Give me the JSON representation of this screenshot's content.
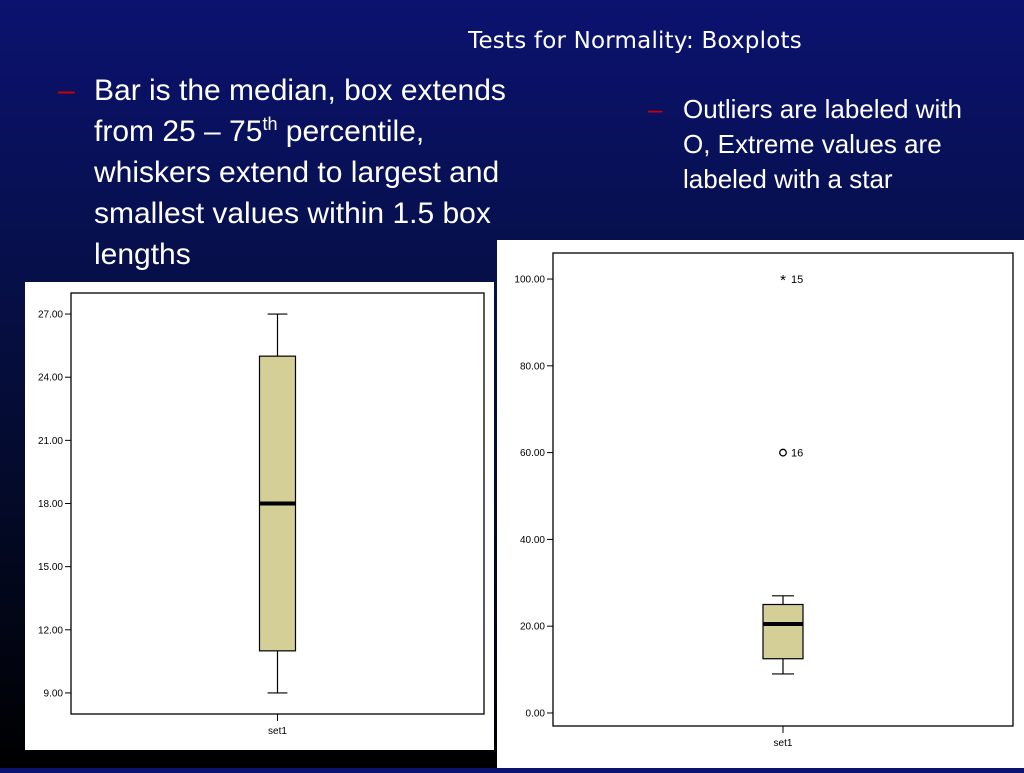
{
  "slide": {
    "title": "Tests for Normality: Boxplots",
    "bullet_left": {
      "dash": "–",
      "line1": "Bar is the median, box extends",
      "line2_prefix": "from 25 – 75",
      "line2_sup": "th",
      "line2_suffix": " percentile,",
      "line3": "whiskers extend to largest and",
      "line4": "smallest values within 1.5 box",
      "line5": "lengths"
    },
    "bullet_right": {
      "dash": "–",
      "line1": "Outliers are labeled with",
      "line2": "O, Extreme values are",
      "line3": "labeled with a star"
    }
  },
  "colors": {
    "box_fill": "#d4cf96",
    "accent_dash": "#cc0000"
  },
  "chart_data": [
    {
      "type": "boxplot",
      "categories": [
        "set1"
      ],
      "ylim": [
        8,
        28
      ],
      "yticks": [
        9,
        12,
        15,
        18,
        21,
        24,
        27
      ],
      "ytick_labels": [
        "9.00",
        "12.00",
        "15.00",
        "18.00",
        "21.00",
        "24.00",
        "27.00"
      ],
      "box": {
        "whisker_low": 9,
        "q1": 11,
        "median": 18,
        "q3": 25,
        "whisker_high": 27
      },
      "outliers": []
    },
    {
      "type": "boxplot",
      "categories": [
        "set1"
      ],
      "ylim": [
        -3,
        106
      ],
      "yticks": [
        0,
        20,
        40,
        60,
        80,
        100
      ],
      "ytick_labels": [
        "0.00",
        "20.00",
        "40.00",
        "60.00",
        "80.00",
        "100.00"
      ],
      "box": {
        "whisker_low": 9,
        "q1": 12.5,
        "median": 20.5,
        "q3": 25,
        "whisker_high": 27
      },
      "outliers": [
        {
          "value": 60,
          "marker": "circle",
          "label": "16"
        },
        {
          "value": 100,
          "marker": "star",
          "label": "15"
        }
      ]
    }
  ]
}
